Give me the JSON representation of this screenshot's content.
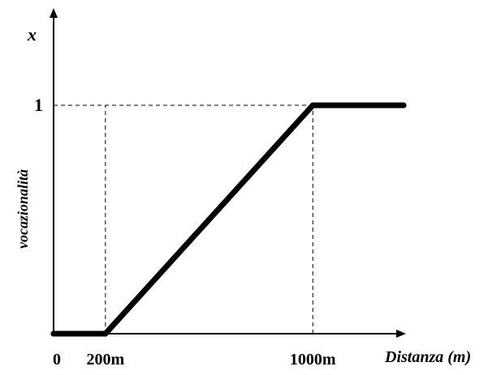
{
  "chart_data": {
    "type": "line",
    "ylabel_symbol": "x",
    "ylabel": "vocazionalità",
    "xlabel": "Distanza (m)",
    "x_ticks": [
      "0",
      "200m",
      "1000m"
    ],
    "y_ticks": [
      "1"
    ],
    "x": [
      0,
      200,
      1000,
      1350
    ],
    "y": [
      0,
      0,
      1,
      1
    ],
    "xlim": [
      0,
      1350
    ],
    "ylim": [
      0,
      1
    ],
    "grid": false,
    "reference_lines": [
      {
        "orientation": "vertical",
        "x": 200,
        "style": "dashed"
      },
      {
        "orientation": "vertical",
        "x": 1000,
        "style": "dashed"
      },
      {
        "orientation": "horizontal",
        "y": 1,
        "style": "dashed"
      }
    ]
  }
}
